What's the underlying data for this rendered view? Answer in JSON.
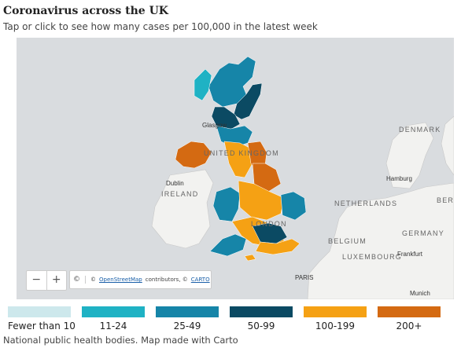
{
  "header": {
    "title": "Coronavirus across the UK",
    "subtitle": "Tap or click to see how many cases per 100,000 in the latest week"
  },
  "map": {
    "labels": {
      "united_kingdom": "UNITED KINGDOM",
      "ireland": "IRELAND",
      "dublin": "Dublin",
      "glasgow": "Glasgow",
      "london": "LONDON",
      "denmark": "DENMARK",
      "hamburg": "Hamburg",
      "berlin": "BERLI",
      "netherlands": "NETHERLANDS",
      "germany": "GERMANY",
      "belgium": "BELGIUM",
      "luxembourg": "LUXEMBOURG",
      "frankfurt": "Frankfurt",
      "paris": "PARIS",
      "munich": "Munich"
    },
    "colors": {
      "sea": "#d9dcdf",
      "land": "#f2f2f0",
      "band_lt10": "#cde8ec",
      "band_11_24": "#1fb2c4",
      "band_25_49": "#1685a8",
      "band_50_99": "#0b4a63",
      "band_100_199": "#f5a114",
      "band_200_plus": "#d46a12"
    }
  },
  "controls": {
    "zoom_out": "−",
    "zoom_in": "+",
    "info": "©",
    "attribution_prefix": "©",
    "osm_link": "OpenStreetMap",
    "attribution_middle": "contributors, ©",
    "carto_link": "CARTO"
  },
  "legend": [
    {
      "label": "Fewer than 10",
      "color": "#cde8ec"
    },
    {
      "label": "11-24",
      "color": "#1fb2c4"
    },
    {
      "label": "25-49",
      "color": "#1685a8"
    },
    {
      "label": "50-99",
      "color": "#0b4a63"
    },
    {
      "label": "100-199",
      "color": "#f5a114"
    },
    {
      "label": "200+",
      "color": "#d46a12"
    }
  ],
  "footer": {
    "source": "National public health bodies. Map made with Carto"
  }
}
